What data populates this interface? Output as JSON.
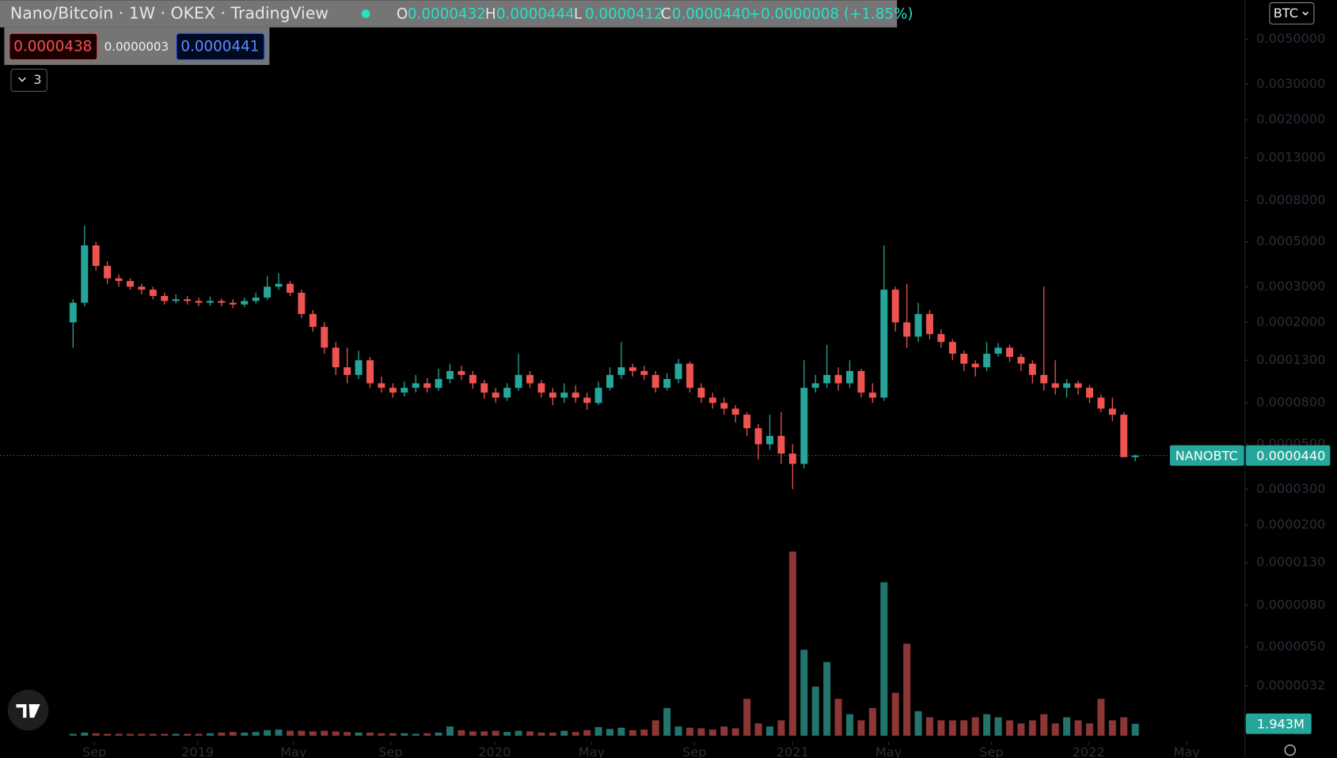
{
  "chart_data": {
    "type": "candlestick",
    "title": "Nano/Bitcoin · 1W · OKEX · TradingView",
    "ohlc_legend": [
      {
        "label": "O",
        "value": "0.0000432"
      },
      {
        "label": "H",
        "value": "0.0000444"
      },
      {
        "label": "L",
        "value": "0.0000412"
      },
      {
        "label": "C",
        "value": "0.0000440"
      }
    ],
    "change": "+0.0000008 (+1.85%)",
    "bid": "0.0000438",
    "spread": "0.0000003",
    "ask": "0.0000441",
    "indicator_count": "3",
    "currency": "BTC",
    "symbol_label": "NANOBTC",
    "last_price": {
      "value": 4.4e-05,
      "label": "0.0000440"
    },
    "log_scale": true,
    "up_color": "#26a69a",
    "down_color": "#ef5350",
    "volume_up_color": "#22756d",
    "volume_down_color": "#8e3636",
    "ylim": [
      1.7e-06,
      0.0078
    ],
    "yticks": [
      {
        "value": 0.005,
        "label": "0.0050000"
      },
      {
        "value": 0.003,
        "label": "0.0030000"
      },
      {
        "value": 0.002,
        "label": "0.0020000"
      },
      {
        "value": 0.0013,
        "label": "0.0013000"
      },
      {
        "value": 0.0008,
        "label": "0.0008000"
      },
      {
        "value": 0.0005,
        "label": "0.0005000"
      },
      {
        "value": 0.0003,
        "label": "0.0003000"
      },
      {
        "value": 0.0002,
        "label": "0.0002000"
      },
      {
        "value": 0.00013,
        "label": "0.0001300"
      },
      {
        "value": 8e-05,
        "label": "0.0000800"
      },
      {
        "value": 5e-05,
        "label": "0.0000500"
      },
      {
        "value": 3e-05,
        "label": "0.0000300"
      },
      {
        "value": 2e-05,
        "label": "0.0000200"
      },
      {
        "value": 1.3e-05,
        "label": "0.0000130"
      },
      {
        "value": 8e-06,
        "label": "0.0000080"
      },
      {
        "value": 5e-06,
        "label": "0.0000050"
      },
      {
        "value": 3.2e-06,
        "label": "0.0000032"
      }
    ],
    "xlim": [
      -6.4,
      102.6
    ],
    "xticks": [
      {
        "value": 1.86,
        "label": "Sep"
      },
      {
        "value": 10.9,
        "label": "2019"
      },
      {
        "value": 19.3,
        "label": "May"
      },
      {
        "value": 27.8,
        "label": "Sep"
      },
      {
        "value": 36.9,
        "label": "2020"
      },
      {
        "value": 45.4,
        "label": "May"
      },
      {
        "value": 54.4,
        "label": "Sep"
      },
      {
        "value": 63.0,
        "label": "2021"
      },
      {
        "value": 71.4,
        "label": "May"
      },
      {
        "value": 80.4,
        "label": "Sep"
      },
      {
        "value": 88.9,
        "label": "2022"
      },
      {
        "value": 97.5,
        "label": "May"
      }
    ],
    "open": [
      0.0002,
      0.00025,
      0.00048,
      0.00038,
      0.00033,
      0.00032,
      0.0003,
      0.00029,
      0.00027,
      0.000255,
      0.00026,
      0.000255,
      0.00025,
      0.000255,
      0.00025,
      0.000245,
      0.000255,
      0.000265,
      0.0003,
      0.00031,
      0.00028,
      0.00022,
      0.00019,
      0.00015,
      0.00012,
      0.00011,
      0.00013,
      0.0001,
      9.5e-05,
      9e-05,
      9.5e-05,
      0.0001,
      9.5e-05,
      0.000105,
      0.000115,
      0.00011,
      0.0001,
      9e-05,
      8.5e-05,
      9.5e-05,
      0.00011,
      0.0001,
      9e-05,
      8.5e-05,
      9e-05,
      8.5e-05,
      8e-05,
      9.5e-05,
      0.00011,
      0.00012,
      0.000115,
      0.00011,
      9.5e-05,
      0.000105,
      0.000125,
      9.5e-05,
      8.5e-05,
      8e-05,
      7.5e-05,
      7e-05,
      6e-05,
      5e-05,
      5.5e-05,
      4.5e-05,
      4e-05,
      9.5e-05,
      0.0001,
      0.00011,
      0.0001,
      0.000115,
      9e-05,
      8.5e-05,
      0.00029,
      0.0002,
      0.00017,
      0.00022,
      0.000175,
      0.00016,
      0.00014,
      0.000125,
      0.00012,
      0.00014,
      0.00015,
      0.000135,
      0.000125,
      0.00011,
      0.0001,
      9.5e-05,
      0.0001,
      9.5e-05,
      8.5e-05,
      7.5e-05,
      7e-05,
      4.32e-05
    ],
    "high": [
      0.00026,
      0.0006,
      0.0005,
      0.0004,
      0.000345,
      0.00033,
      0.00031,
      0.0003,
      0.00028,
      0.000275,
      0.00027,
      0.000265,
      0.000268,
      0.000262,
      0.00026,
      0.000265,
      0.00028,
      0.00034,
      0.00035,
      0.00032,
      0.00029,
      0.00023,
      0.0002,
      0.00016,
      0.00015,
      0.000145,
      0.000135,
      0.000108,
      0.0001,
      0.000102,
      0.00011,
      0.000106,
      0.000118,
      0.000125,
      0.000122,
      0.000115,
      0.000104,
      9.5e-05,
      0.0001,
      0.00014,
      0.000115,
      0.000104,
      9.5e-05,
      0.0001,
      9.8e-05,
      9e-05,
      0.000102,
      0.00012,
      0.00016,
      0.000125,
      0.000122,
      0.000115,
      0.000112,
      0.000132,
      0.000128,
      0.0001,
      9e-05,
      8.5e-05,
      7.8e-05,
      7.2e-05,
      6.3e-05,
      7e-05,
      7.2e-05,
      5e-05,
      0.00013,
      0.00011,
      0.000155,
      0.00012,
      0.00013,
      0.000118,
      0.0001,
      0.00048,
      0.0003,
      0.00031,
      0.00025,
      0.00023,
      0.000185,
      0.000165,
      0.000145,
      0.00013,
      0.00016,
      0.000158,
      0.000155,
      0.00014,
      0.00013,
      0.0003,
      0.00013,
      0.000105,
      0.000103,
      9.8e-05,
      8.8e-05,
      8.5e-05,
      7.2e-05,
      4.44e-05
    ],
    "low": [
      0.00015,
      0.00024,
      0.00036,
      0.00031,
      0.0003,
      0.00029,
      0.000275,
      0.00026,
      0.000245,
      0.000248,
      0.000245,
      0.00024,
      0.000242,
      0.00024,
      0.000235,
      0.000238,
      0.000248,
      0.000258,
      0.00029,
      0.00027,
      0.00021,
      0.00018,
      0.00014,
      0.00011,
      0.0001,
      0.000105,
      9.5e-05,
      9e-05,
      8.5e-05,
      8.6e-05,
      9e-05,
      9e-05,
      9.2e-05,
      0.0001,
      0.000104,
      9.4e-05,
      8.4e-05,
      8e-05,
      8.2e-05,
      9.2e-05,
      9.5e-05,
      8.5e-05,
      7.8e-05,
      8e-05,
      8e-05,
      7.4e-05,
      7.8e-05,
      9.2e-05,
      0.000105,
      0.000108,
      0.000104,
      9e-05,
      9.2e-05,
      0.0001,
      9e-05,
      8e-05,
      7.5e-05,
      7e-05,
      6.4e-05,
      5.5e-05,
      4.2e-05,
      4.7e-05,
      4e-05,
      3e-05,
      3.8e-05,
      9e-05,
      9.5e-05,
      9.2e-05,
      9.5e-05,
      8.5e-05,
      8e-05,
      8.2e-05,
      0.00018,
      0.00015,
      0.00016,
      0.000165,
      0.00015,
      0.00013,
      0.000115,
      0.000108,
      0.000115,
      0.000135,
      0.000128,
      0.000115,
      0.0001,
      9.2e-05,
      8.8e-05,
      8.5e-05,
      8.8e-05,
      8e-05,
      7.2e-05,
      6.5e-05,
      5e-05,
      4.12e-05
    ],
    "close": [
      0.00025,
      0.00048,
      0.00038,
      0.00033,
      0.00032,
      0.0003,
      0.00029,
      0.00027,
      0.000255,
      0.00026,
      0.000255,
      0.00025,
      0.000255,
      0.00025,
      0.000245,
      0.000255,
      0.000265,
      0.0003,
      0.00031,
      0.00028,
      0.00022,
      0.00019,
      0.00015,
      0.00012,
      0.00011,
      0.00013,
      0.0001,
      9.5e-05,
      9e-05,
      9.5e-05,
      0.0001,
      9.5e-05,
      0.000105,
      0.000115,
      0.00011,
      0.0001,
      9e-05,
      8.5e-05,
      9.5e-05,
      0.00011,
      0.0001,
      9e-05,
      8.5e-05,
      9e-05,
      8.5e-05,
      8e-05,
      9.5e-05,
      0.00011,
      0.00012,
      0.000115,
      0.00011,
      9.5e-05,
      0.000105,
      0.000125,
      9.5e-05,
      8.5e-05,
      8e-05,
      7.5e-05,
      7e-05,
      6e-05,
      5e-05,
      5.5e-05,
      4.5e-05,
      4e-05,
      9.5e-05,
      0.0001,
      0.00011,
      0.0001,
      0.000115,
      9e-05,
      8.5e-05,
      0.00029,
      0.0002,
      0.00017,
      0.00022,
      0.000175,
      0.00016,
      0.00014,
      0.000125,
      0.00012,
      0.00014,
      0.00015,
      0.000135,
      0.000125,
      0.00011,
      0.0001,
      9.5e-05,
      0.0001,
      9.5e-05,
      8.5e-05,
      7.5e-05,
      7e-05,
      4.32e-05,
      4.4e-05
    ],
    "volume": [
      0.3,
      0.5,
      0.4,
      0.3,
      0.3,
      0.3,
      0.3,
      0.3,
      0.3,
      0.3,
      0.3,
      0.3,
      0.4,
      0.5,
      0.6,
      0.5,
      0.6,
      0.9,
      1.0,
      0.8,
      0.8,
      0.7,
      0.8,
      0.7,
      0.6,
      0.5,
      0.5,
      0.4,
      0.4,
      0.4,
      0.3,
      0.4,
      0.5,
      1.5,
      0.9,
      0.7,
      0.7,
      0.8,
      0.6,
      0.8,
      0.7,
      0.5,
      0.5,
      0.8,
      0.6,
      0.9,
      1.4,
      1.1,
      1.3,
      0.9,
      1.0,
      2.5,
      4.5,
      1.5,
      1.3,
      1.2,
      1.0,
      1.5,
      1.2,
      6.0,
      2.0,
      1.5,
      2.5,
      30,
      14,
      8,
      12,
      6,
      3.5,
      2.5,
      4.5,
      25,
      7,
      15,
      4,
      3,
      2.5,
      2.5,
      2.5,
      3,
      3.5,
      3,
      2.5,
      2,
      2.5,
      3.5,
      2,
      3,
      2.5,
      2,
      6,
      2.5,
      3,
      1.943
    ],
    "volume_ylim": [
      0,
      30
    ],
    "volume_label": "1.943M"
  }
}
